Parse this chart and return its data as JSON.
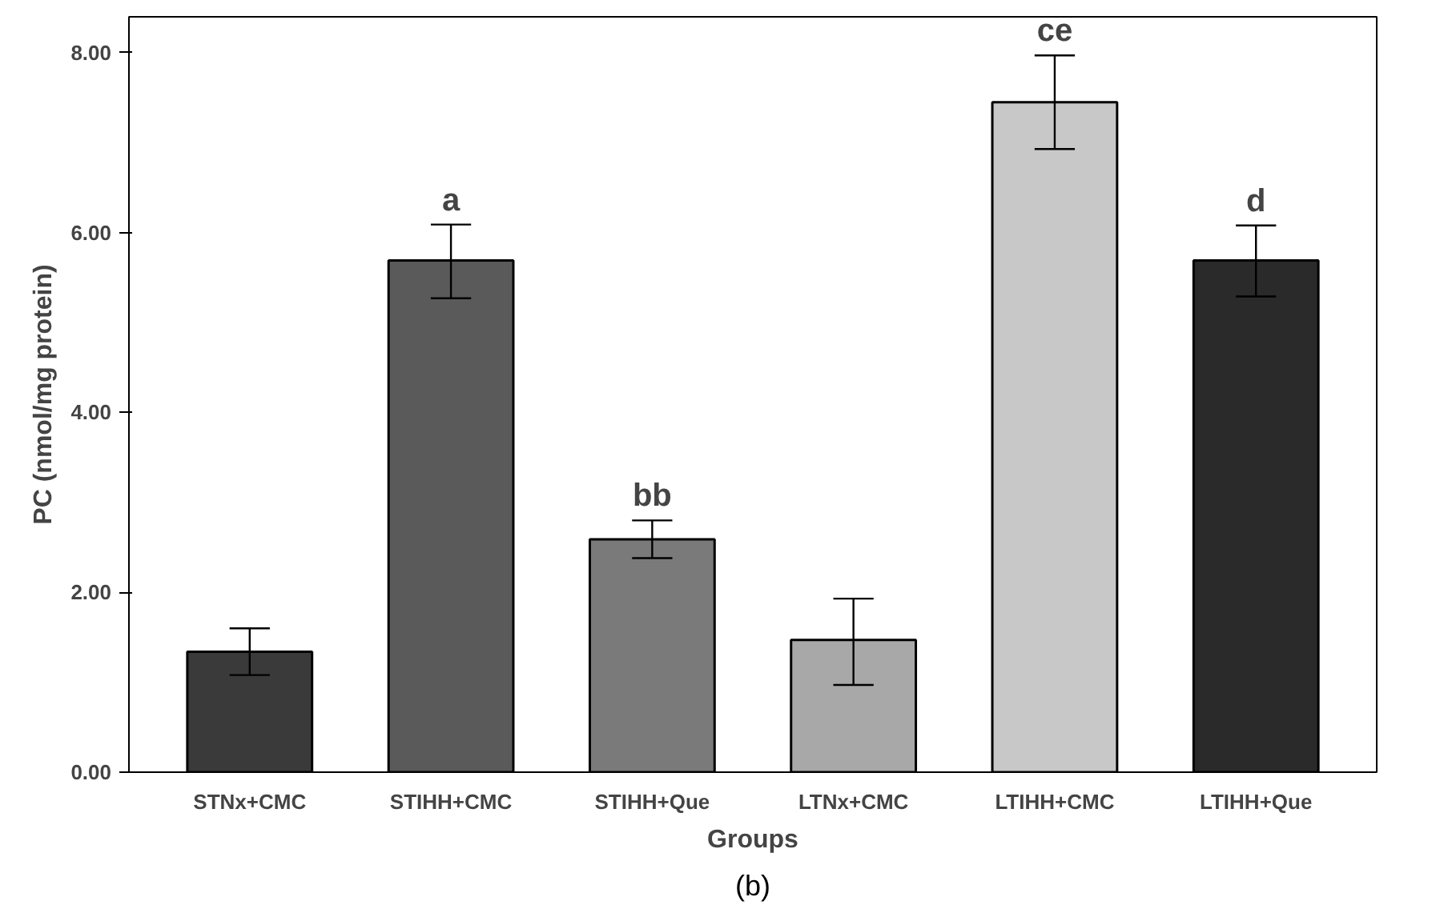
{
  "chart_data": {
    "type": "bar",
    "xlabel": "Groups",
    "ylabel": "PC (nmol/mg protein)",
    "categories": [
      "STNx+CMC",
      "STIHH+CMC",
      "STIHH+Que",
      "LTNx+CMC",
      "LTIHH+CMC",
      "LTIHH+Que"
    ],
    "values": [
      1.34,
      5.69,
      2.59,
      1.47,
      7.45,
      5.69
    ],
    "colors": [
      "#3a3a3a",
      "#5a5a5a",
      "#7a7a7a",
      "#a8a8a8",
      "#c8c8c8",
      "#2a2a2a"
    ],
    "errors": [
      [
        1.08,
        1.6
      ],
      [
        5.27,
        6.09
      ],
      [
        2.38,
        2.8
      ],
      [
        0.97,
        1.93
      ],
      [
        6.93,
        7.97
      ],
      [
        5.29,
        6.08
      ]
    ],
    "ylim": [
      0,
      8.4
    ],
    "yticks": [
      {
        "value": 0,
        "label": "0.00"
      },
      {
        "value": 2,
        "label": "2.00"
      },
      {
        "value": 4,
        "label": "4.00"
      },
      {
        "value": 6,
        "label": "6.00"
      },
      {
        "value": 8,
        "label": "8.00"
      }
    ],
    "grid": false,
    "annotations": [
      {
        "text": "a",
        "x": "STIHH+CMC",
        "y": 6.09
      },
      {
        "text": "bb",
        "x": "STIHH+Que",
        "y": 2.8
      },
      {
        "text": "ce",
        "x": "LTIHH+CMC",
        "y": 7.97
      },
      {
        "text": "d",
        "x": "LTIHH+Que",
        "y": 6.08
      },
      "(b)"
    ]
  }
}
